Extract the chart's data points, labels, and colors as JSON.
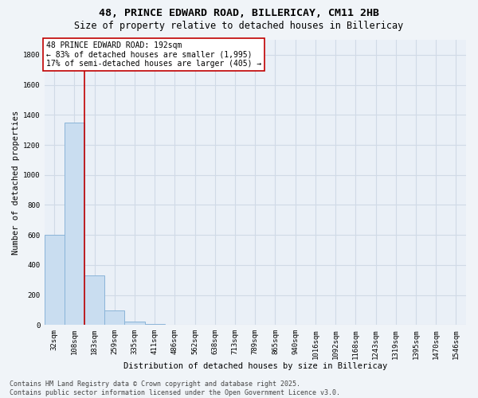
{
  "title_line1": "48, PRINCE EDWARD ROAD, BILLERICAY, CM11 2HB",
  "title_line2": "Size of property relative to detached houses in Billericay",
  "xlabel": "Distribution of detached houses by size in Billericay",
  "ylabel": "Number of detached properties",
  "categories": [
    "32sqm",
    "108sqm",
    "183sqm",
    "259sqm",
    "335sqm",
    "411sqm",
    "486sqm",
    "562sqm",
    "638sqm",
    "713sqm",
    "789sqm",
    "865sqm",
    "940sqm",
    "1016sqm",
    "1092sqm",
    "1168sqm",
    "1243sqm",
    "1319sqm",
    "1395sqm",
    "1470sqm",
    "1546sqm"
  ],
  "bar_values": [
    600,
    1350,
    330,
    95,
    25,
    5,
    0,
    0,
    0,
    0,
    0,
    0,
    0,
    0,
    0,
    0,
    0,
    0,
    0,
    0,
    0
  ],
  "bar_color": "#c9ddf0",
  "bar_edge_color": "#8ab4d8",
  "ylim": [
    0,
    1900
  ],
  "yticks": [
    0,
    200,
    400,
    600,
    800,
    1000,
    1200,
    1400,
    1600,
    1800
  ],
  "vline_x": 1.5,
  "vline_color": "#c00000",
  "annotation_text": "48 PRINCE EDWARD ROAD: 192sqm\n← 83% of detached houses are smaller (1,995)\n17% of semi-detached houses are larger (405) →",
  "bg_color": "#f0f4f8",
  "plot_bg_color": "#eaf0f7",
  "grid_color": "#d0dae6",
  "title_fontsize": 9.5,
  "subtitle_fontsize": 8.5,
  "axis_label_fontsize": 7.5,
  "tick_fontsize": 6.5,
  "annot_fontsize": 7,
  "footer_fontsize": 6,
  "footer_text": "Contains HM Land Registry data © Crown copyright and database right 2025.\nContains public sector information licensed under the Open Government Licence v3.0."
}
